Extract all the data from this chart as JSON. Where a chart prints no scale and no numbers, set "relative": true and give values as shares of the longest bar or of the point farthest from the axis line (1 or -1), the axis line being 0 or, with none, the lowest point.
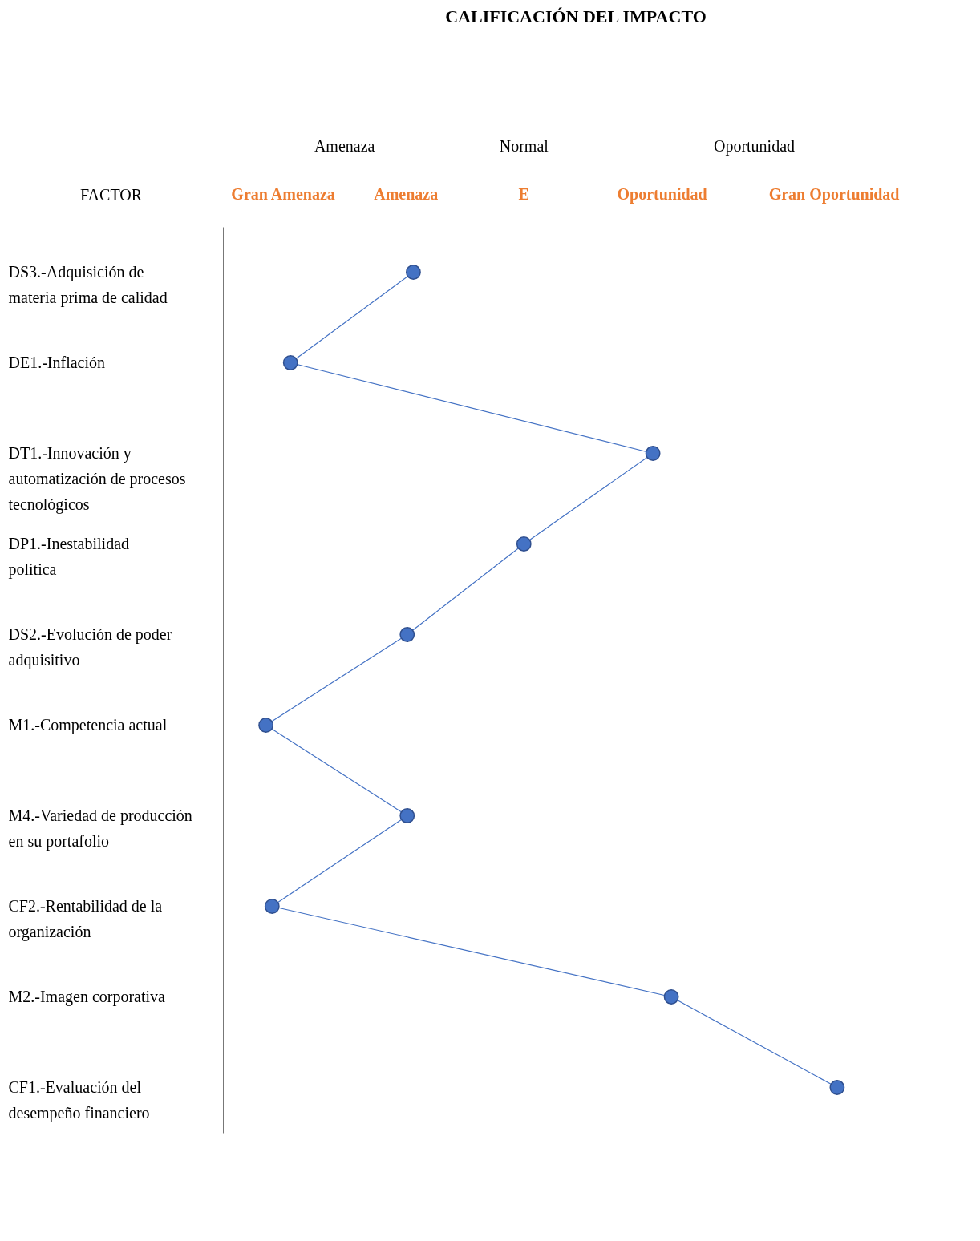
{
  "chart_data": {
    "type": "line",
    "orientation": "horizontal",
    "relative": true,
    "title": "CALIFICACIÓN DEL IMPACTO",
    "ylabel": "FACTOR",
    "categories": [
      "DS3.-Adquisición de materia prima de calidad",
      "DE1.-Inflación",
      "DT1.-Innovación y automatización de procesos tecnológicos",
      "DP1.-Inestabilidad política",
      "DS2.-Evolución de poder adquisitivo",
      "M1.-Competencia actual",
      "M4.-Variedad de producción en su portafolio",
      "CF2.-Rentabilidad de la organización",
      "M2.-Imagen corporativa",
      "CF1.-Evaluación del desempeño financiero"
    ],
    "series": [
      {
        "color": "#4472c4",
        "values": [
          0.31,
          0.11,
          0.7,
          0.49,
          0.3,
          0.07,
          0.3,
          0.08,
          0.73,
          1
        ]
      }
    ],
    "annotations": [
      "Amenaza",
      "Normal",
      "Oportunidad",
      "Gran Amenaza",
      "Amenaza",
      "E",
      "Oportunidad",
      "Gran Oportunidad"
    ],
    "marker": "circle",
    "line_style": "solid",
    "grid": false,
    "legend": false
  }
}
